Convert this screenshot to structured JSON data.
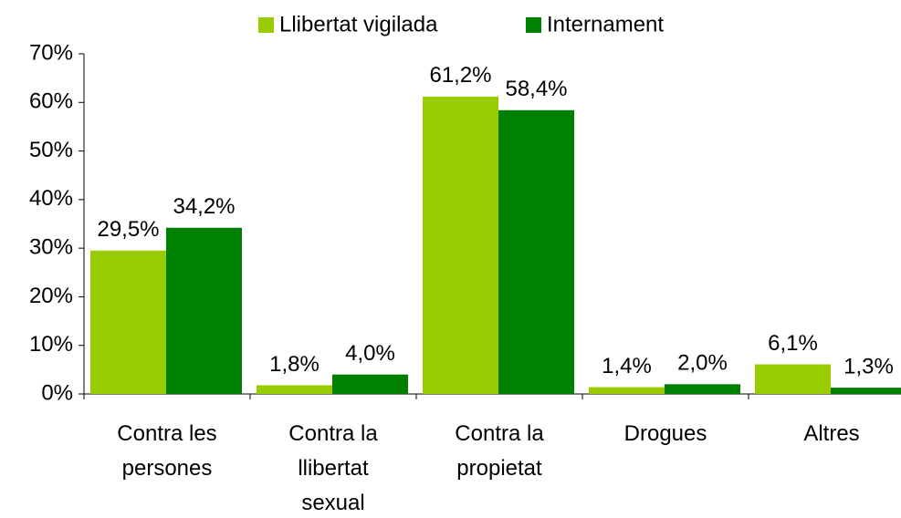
{
  "chart_data": {
    "type": "bar",
    "categories": [
      "Contra les\npersones",
      "Contra la\nllibertat\nsexual",
      "Contra la\npropietat",
      "Drogues",
      "Altres"
    ],
    "series": [
      {
        "name": "Llibertat vigilada",
        "color": "#99cc00",
        "values": [
          29.5,
          1.8,
          61.2,
          1.4,
          6.1
        ],
        "value_labels": [
          "29,5%",
          "1,8%",
          "61,2%",
          "1,4%",
          "6,1%"
        ]
      },
      {
        "name": "Internament",
        "color": "#008000",
        "values": [
          34.2,
          4.0,
          58.4,
          2.0,
          1.3
        ],
        "value_labels": [
          "34,2%",
          "4,0%",
          "58,4%",
          "2,0%",
          "1,3%"
        ]
      }
    ],
    "ylim": [
      0,
      70
    ],
    "yticks": [
      {
        "value": 0,
        "label": "0%"
      },
      {
        "value": 10,
        "label": "10%"
      },
      {
        "value": 20,
        "label": "20%"
      },
      {
        "value": 30,
        "label": "30%"
      },
      {
        "value": 40,
        "label": "40%"
      },
      {
        "value": 50,
        "label": "50%"
      },
      {
        "value": 60,
        "label": "60%"
      },
      {
        "value": 70,
        "label": "70%"
      }
    ],
    "legend": "top"
  }
}
